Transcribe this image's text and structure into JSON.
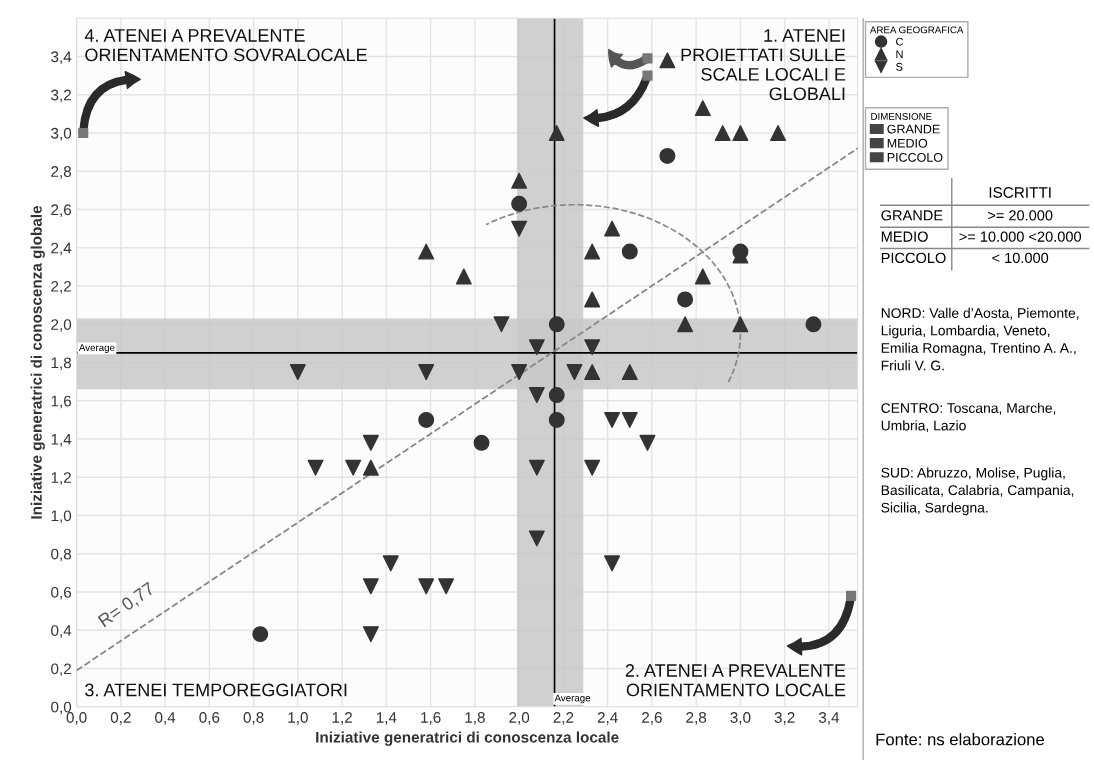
{
  "chart_data": {
    "type": "scatter",
    "xlabel": "Iniziative generatrici di conoscenza locale",
    "ylabel": "Iniziative generatrici di conoscenza globale",
    "legend_title": "AREA GEOGRAFICA",
    "legend": "top right",
    "grid": true,
    "xlim": [
      0,
      3.53
    ],
    "ylim": [
      0,
      3.6
    ],
    "xticks": [
      {
        "value": 0,
        "label": "0,0"
      },
      {
        "value": 0.2,
        "label": "0,2"
      },
      {
        "value": 0.4,
        "label": "0,4"
      },
      {
        "value": 0.6,
        "label": "0,6"
      },
      {
        "value": 0.8,
        "label": "0,8"
      },
      {
        "value": 1.0,
        "label": "1,0"
      },
      {
        "value": 1.2,
        "label": "1,2"
      },
      {
        "value": 1.4,
        "label": "1,4"
      },
      {
        "value": 1.6,
        "label": "1,6"
      },
      {
        "value": 1.8,
        "label": "1,8"
      },
      {
        "value": 2.0,
        "label": "2,0"
      },
      {
        "value": 2.2,
        "label": "2,2"
      },
      {
        "value": 2.4,
        "label": "2,4"
      },
      {
        "value": 2.6,
        "label": "2,6"
      },
      {
        "value": 2.8,
        "label": "2,8"
      },
      {
        "value": 3.0,
        "label": "3,0"
      },
      {
        "value": 3.2,
        "label": "3,2"
      },
      {
        "value": 3.4,
        "label": "3,4"
      }
    ],
    "yticks": [
      {
        "value": 0,
        "label": "0,0"
      },
      {
        "value": 0.2,
        "label": "0,2"
      },
      {
        "value": 0.4,
        "label": "0,4"
      },
      {
        "value": 0.6,
        "label": "0,6"
      },
      {
        "value": 0.8,
        "label": "0,8"
      },
      {
        "value": 1.0,
        "label": "1,0"
      },
      {
        "value": 1.2,
        "label": "1,2"
      },
      {
        "value": 1.4,
        "label": "1,4"
      },
      {
        "value": 1.6,
        "label": "1,6"
      },
      {
        "value": 1.8,
        "label": "1,8"
      },
      {
        "value": 2.0,
        "label": "2,0"
      },
      {
        "value": 2.2,
        "label": "2,2"
      },
      {
        "value": 2.4,
        "label": "2,4"
      },
      {
        "value": 2.6,
        "label": "2,6"
      },
      {
        "value": 2.8,
        "label": "2,8"
      },
      {
        "value": 3.0,
        "label": "3,0"
      },
      {
        "value": 3.2,
        "label": "3,2"
      },
      {
        "value": 3.4,
        "label": "3,4"
      }
    ],
    "bands": [
      {
        "axis": "x",
        "from": 1.99,
        "to": 2.29,
        "color": "#c8c8c8"
      },
      {
        "axis": "y",
        "from": 1.66,
        "to": 2.03,
        "color": "#c8c8c8"
      }
    ],
    "ref_lines": [
      {
        "axis": "x",
        "value": 2.16,
        "label": "Average",
        "color": "#000000"
      },
      {
        "axis": "y",
        "value": 1.85,
        "label": "Average",
        "color": "#000000"
      }
    ],
    "series": [
      {
        "name": "C",
        "marker": "circle",
        "color": "#333333",
        "x": [
          2.67,
          2.0,
          2.5,
          3.0,
          2.75,
          2.17,
          3.33,
          2.17,
          2.17,
          1.58,
          1.83,
          0.83
        ],
        "values": [
          2.88,
          2.63,
          2.38,
          2.38,
          2.13,
          2.0,
          2.0,
          1.63,
          1.5,
          1.5,
          1.38,
          0.38
        ]
      },
      {
        "name": "N",
        "marker": "triangle",
        "color": "#333333",
        "x": [
          2.67,
          2.83,
          2.92,
          3.0,
          3.17,
          2.17,
          2.0,
          2.42,
          1.58,
          2.33,
          3.0,
          1.75,
          2.83,
          2.33,
          2.75,
          3.0,
          2.33,
          2.5,
          1.33
        ],
        "values": [
          3.38,
          3.13,
          3.0,
          3.0,
          3.0,
          3.0,
          2.75,
          2.5,
          2.38,
          2.38,
          2.36,
          2.25,
          2.25,
          2.13,
          2.0,
          2.0,
          1.75,
          1.75,
          1.25
        ]
      },
      {
        "name": "S",
        "marker": "triangle_down",
        "color": "#333333",
        "x": [
          2.0,
          1.92,
          2.08,
          2.33,
          1.0,
          1.58,
          2.0,
          2.25,
          2.08,
          2.42,
          2.5,
          2.58,
          1.33,
          1.08,
          1.25,
          2.08,
          2.33,
          2.08,
          1.42,
          2.42,
          1.33,
          1.58,
          1.67,
          1.33
        ],
        "values": [
          2.5,
          2.0,
          1.88,
          1.88,
          1.75,
          1.75,
          1.75,
          1.75,
          1.63,
          1.5,
          1.5,
          1.38,
          1.38,
          1.25,
          1.25,
          1.25,
          1.25,
          0.88,
          0.75,
          0.75,
          0.63,
          0.63,
          0.63,
          0.38
        ]
      },
      {
        "type": "line",
        "line_style": "dashed",
        "color": "#888888",
        "x": [
          0,
          3.53
        ],
        "values": [
          0.19,
          2.92
        ]
      }
    ],
    "annotations": [
      "1. ATENEI\nPROIETTATI SULLE\nSCALE LOCALI E\nGLOBALI",
      "2. ATENEI A PREVALENTE\nORIENTAMENTO LOCALE",
      "3. ATENEI TEMPOREGGIATORI",
      "4. ATENEI A PREVALENTE\nORIENTAMENTO SOVRALOCALE",
      "R= 0,77",
      "DIMENSIONE",
      "GRANDE",
      "MEDIO",
      "PICCOLO",
      "ISCRITTI",
      "GRANDE",
      ">= 20.000",
      "MEDIO",
      ">= 10.000 <20.000",
      "PICCOLO",
      "< 10.000",
      "NORD: Valle d’Aosta, Piemonte,\nLiguria, Lombardia, Veneto,\nEmilia Romagna, Trentino A. A.,\nFriuli V. G.",
      "CENTRO: Toscana, Marche,\nUmbria, Lazio",
      "SUD: Abruzzo, Molise, Puglia,\nBasilicata, Calabria, Campania,\nSicilia, Sardegna.",
      "Fonte: ns elaborazione"
    ]
  }
}
